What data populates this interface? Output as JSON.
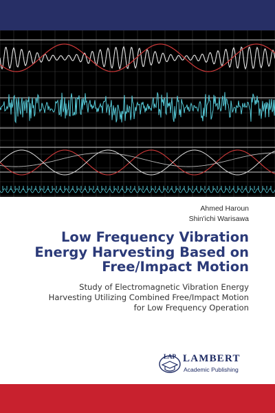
{
  "book": {
    "authors": [
      "Ahmed Haroun",
      "Shin'ichi Warisawa"
    ],
    "title_lines": [
      "Low Frequency Vibration",
      "Energy Harvesting Based on",
      "Free/Impact Motion"
    ],
    "subtitle_lines": [
      "Study of Electromagnetic Vibration Energy",
      "Harvesting Utilizing Combined Free/Impact Motion",
      "for Low Frequency Operation"
    ]
  },
  "publisher": {
    "logo_text": "LAP",
    "name": "LAMBERT",
    "subname": "Academic Publishing"
  },
  "colors": {
    "top_band": "#272f66",
    "bottom_band": "#c8212e",
    "title": "#2b3a78",
    "waveform_cyan": "#56c8d6",
    "waveform_red": "#d23a3a",
    "grid": "#3c3c3c"
  }
}
